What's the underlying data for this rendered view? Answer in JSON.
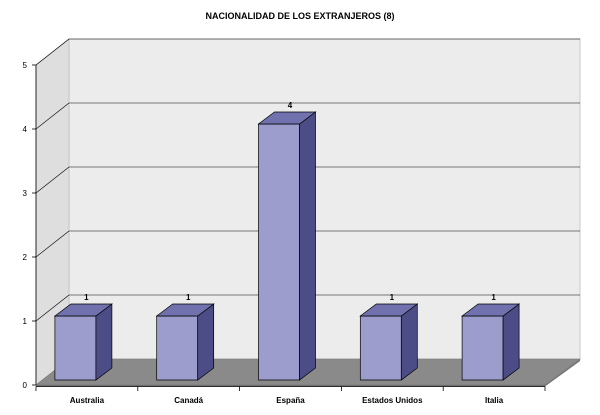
{
  "chart_data": {
    "type": "bar",
    "title": "NACIONALIDAD DE LOS EXTRANJEROS (8)",
    "categories": [
      "Australia",
      "Canadá",
      "España",
      "Estados Unidos",
      "Italia"
    ],
    "values": [
      1,
      1,
      4,
      1,
      1
    ],
    "data_labels": [
      "1",
      "1",
      "4",
      "1",
      "1"
    ],
    "xlabel": "",
    "ylabel": "",
    "ylim": [
      0,
      5
    ],
    "yticks": [
      "0",
      "1",
      "2",
      "3",
      "4",
      "5"
    ],
    "grid": true,
    "legend": "none",
    "style": "3d-column",
    "colors": {
      "bar_front": "#9d9dcd",
      "bar_side": "#4c4c86",
      "bar_top": "#7171ad",
      "wall_back": "#ececec",
      "wall_side": "#dedede",
      "floor": "#8a8a8a",
      "gridline": "#000000"
    }
  }
}
